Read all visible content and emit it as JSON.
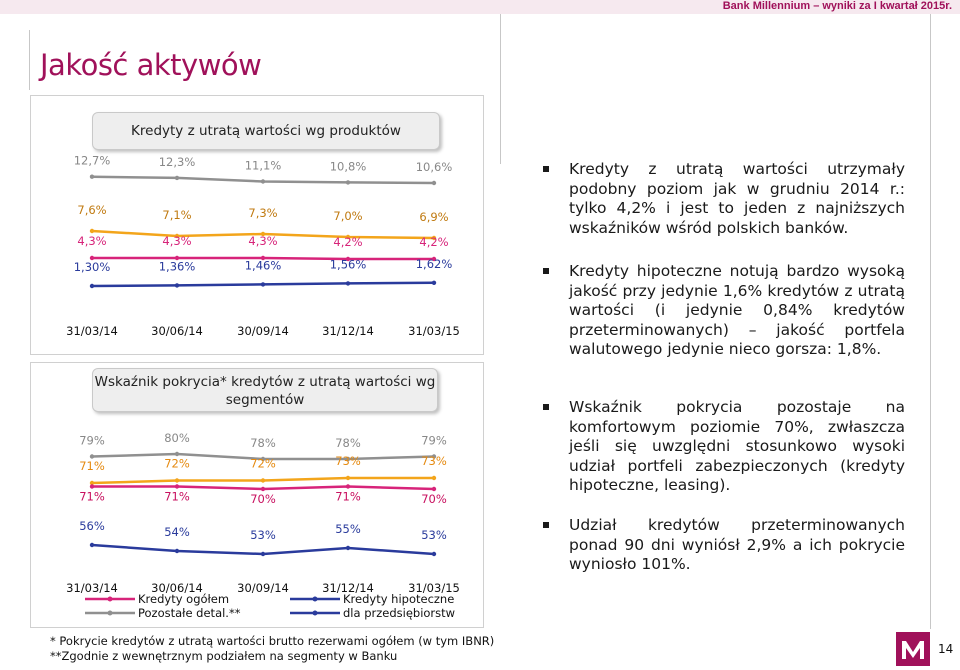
{
  "header": {
    "title": "Bank Millennium – wyniki za I kwartał 2015r."
  },
  "page_title": "Jakość aktywów",
  "colors": {
    "brand": "#a0115a",
    "pink": "#d7247a",
    "blue": "#2a3b9c",
    "gray": "#909090",
    "orange": "#f3a51b"
  },
  "chart_data": [
    {
      "type": "line",
      "title": "Kredyty z utratą wartości wg produktów",
      "categories": [
        "31/03/14",
        "30/06/14",
        "30/09/14",
        "31/12/14",
        "31/03/15"
      ],
      "series": [
        {
          "values": [
            12.7,
            12.3,
            11.1,
            10.8,
            10.6
          ],
          "labels": [
            "12,7%",
            "12,3%",
            "11,1%",
            "10,8%",
            "10,6%"
          ],
          "color": "#909090"
        },
        {
          "values": [
            7.6,
            7.1,
            7.3,
            7.0,
            6.9
          ],
          "labels": [
            "7,6%",
            "7,1%",
            "7,3%",
            "7,0%",
            "6,9%"
          ],
          "color": "#f3a51b"
        },
        {
          "values": [
            4.3,
            4.3,
            4.3,
            4.2,
            4.2
          ],
          "labels": [
            "4,3%",
            "4,3%",
            "4,3%",
            "4,2%",
            "4,2%"
          ],
          "color": "#d7247a"
        },
        {
          "values": [
            1.3,
            1.36,
            1.46,
            1.56,
            1.62
          ],
          "labels": [
            "1,30%",
            "1,36%",
            "1,46%",
            "1,56%",
            "1,62%"
          ],
          "color": "#2a3b9c"
        }
      ]
    },
    {
      "type": "line",
      "title": "Wskaźnik pokrycia* kredytów z utratą wartości wg segmentów",
      "categories": [
        "31/03/14",
        "30/06/14",
        "30/09/14",
        "31/12/14",
        "31/03/15"
      ],
      "series": [
        {
          "values": [
            79,
            80,
            78,
            78,
            79
          ],
          "labels": [
            "79%",
            "80%",
            "78%",
            "78%",
            "79%"
          ],
          "color": "#909090"
        },
        {
          "values": [
            71,
            72,
            72,
            73,
            73
          ],
          "labels": [
            "71%",
            "72%",
            "72%",
            "73%",
            "73%"
          ],
          "color": "#f3a51b"
        },
        {
          "name": "Kredyty ogółem",
          "values": [
            71,
            71,
            70,
            71,
            70
          ],
          "labels": [
            "71%",
            "71%",
            "70%",
            "71%",
            "70%"
          ],
          "color": "#d7247a"
        },
        {
          "values": [
            56,
            54,
            53,
            55,
            53
          ],
          "labels": [
            "56%",
            "54%",
            "53%",
            "55%",
            "53%"
          ],
          "color": "#2a3b9c"
        }
      ],
      "legend": [
        "Kredyty ogółem",
        "Kredyty hipoteczne",
        "Pozostałe detal.**",
        "dla przedsiębiorstw"
      ]
    }
  ],
  "bullets": [
    "Kredyty z utratą wartości utrzymały podobny poziom jak w grudniu 2014 r.: tylko 4,2% i jest to jeden z najniższych wskaźników wśród polskich banków.",
    "Kredyty hipoteczne notują bardzo wysoką jakość przy jedynie 1,6% kredytów z utratą wartości (i jedynie 0,84% kredytów przeterminowanych) – jakość portfela walutowego jedynie nieco gorsza: 1,8%.",
    "Wskaźnik pokrycia pozostaje na komfortowym poziomie 70%, zwłaszcza jeśli się uwzględni stosunkowo wysoki udział portfeli zabezpieczonych (kredyty hipoteczne, leasing).",
    "Udział kredytów przeterminowanych ponad 90 dni wyniósł 2,9% a ich pokrycie wyniosło 101%."
  ],
  "footnotes": [
    "* Pokrycie kredytów z utratą wartości brutto rezerwami ogółem (w tym IBNR)",
    "**Zgodnie z wewnętrznym podziałem na segmenty w Banku"
  ],
  "page_number": "14"
}
